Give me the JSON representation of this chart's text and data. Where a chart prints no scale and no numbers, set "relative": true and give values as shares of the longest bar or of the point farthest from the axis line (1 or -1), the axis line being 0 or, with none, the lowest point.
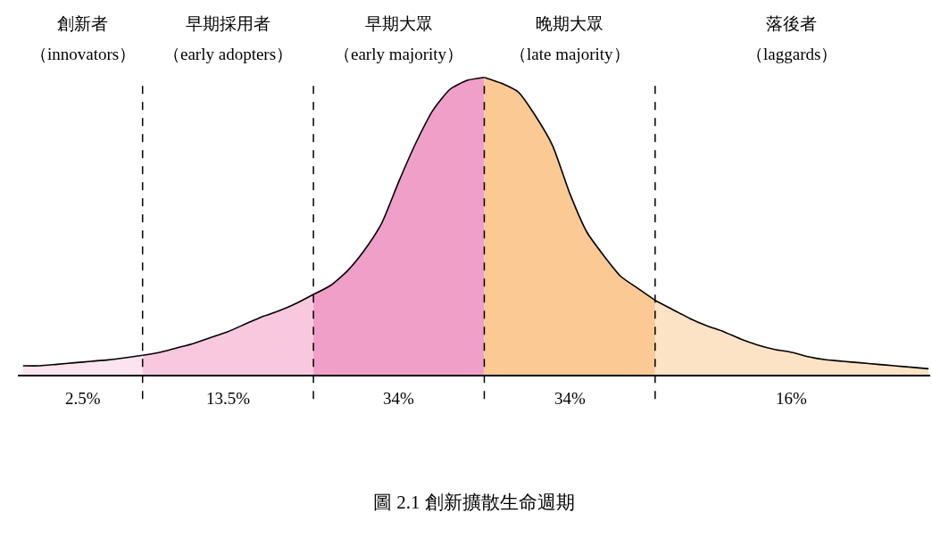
{
  "chart_data": {
    "type": "area",
    "relative": true,
    "grid": "x",
    "categories": [
      null,
      null,
      null,
      null,
      null,
      null,
      null,
      null,
      null,
      null,
      null,
      null,
      null,
      null,
      null,
      null,
      null,
      null,
      null,
      null,
      null,
      null,
      null,
      null,
      null,
      null,
      null,
      null,
      null,
      null,
      null,
      null,
      null,
      null,
      null,
      null,
      null,
      null,
      null,
      null,
      null,
      null,
      null,
      null,
      null,
      null,
      null,
      null,
      null,
      null,
      null,
      null,
      null,
      null
    ],
    "series": [
      {
        "color": "#fce4ef",
        "values": [
          0.03,
          0.03,
          0.035,
          0.04,
          0.045,
          0.05,
          0.057,
          0.065,
          null,
          null,
          null,
          null,
          null,
          null,
          null,
          null,
          null,
          null,
          null,
          null,
          null,
          null,
          null,
          null,
          null,
          null,
          null,
          null,
          null,
          null,
          null,
          null,
          null,
          null,
          null,
          null,
          null,
          null,
          null,
          null,
          null,
          null,
          null,
          null,
          null,
          null,
          null,
          null,
          null,
          null,
          null,
          null,
          null,
          null
        ]
      },
      {
        "color": "#f8c8df",
        "values": [
          null,
          null,
          null,
          null,
          null,
          null,
          null,
          0.065,
          0.075,
          0.09,
          0.105,
          0.125,
          0.145,
          0.17,
          0.195,
          0.215,
          0.24,
          0.27,
          null,
          null,
          null,
          null,
          null,
          null,
          null,
          null,
          null,
          null,
          null,
          null,
          null,
          null,
          null,
          null,
          null,
          null,
          null,
          null,
          null,
          null,
          null,
          null,
          null,
          null,
          null,
          null,
          null,
          null,
          null,
          null,
          null,
          null,
          null,
          null
        ]
      },
      {
        "color": "#ef9fc8",
        "values": [
          null,
          null,
          null,
          null,
          null,
          null,
          null,
          null,
          null,
          null,
          null,
          null,
          null,
          null,
          null,
          null,
          null,
          0.27,
          0.3,
          0.35,
          0.42,
          0.51,
          0.65,
          0.78,
          0.89,
          0.96,
          0.99,
          1.0,
          null,
          null,
          null,
          null,
          null,
          null,
          null,
          null,
          null,
          null,
          null,
          null,
          null,
          null,
          null,
          null,
          null,
          null,
          null,
          null,
          null,
          null,
          null,
          null,
          null,
          null
        ]
      },
      {
        "color": "#fbc993",
        "values": [
          null,
          null,
          null,
          null,
          null,
          null,
          null,
          null,
          null,
          null,
          null,
          null,
          null,
          null,
          null,
          null,
          null,
          null,
          null,
          null,
          null,
          null,
          null,
          null,
          null,
          null,
          null,
          1.0,
          0.98,
          0.95,
          0.87,
          0.77,
          0.61,
          0.48,
          0.4,
          0.33,
          0.29,
          0.25,
          null,
          null,
          null,
          null,
          null,
          null,
          null,
          null,
          null,
          null,
          null,
          null,
          null,
          null,
          null,
          null
        ]
      },
      {
        "color": "#fde3c6",
        "values": [
          null,
          null,
          null,
          null,
          null,
          null,
          null,
          null,
          null,
          null,
          null,
          null,
          null,
          null,
          null,
          null,
          null,
          null,
          null,
          null,
          null,
          null,
          null,
          null,
          null,
          null,
          null,
          null,
          null,
          null,
          null,
          null,
          null,
          null,
          null,
          null,
          null,
          0.25,
          0.22,
          0.19,
          0.165,
          0.145,
          0.12,
          0.1,
          0.085,
          0.075,
          0.06,
          0.05,
          0.045,
          0.04,
          0.035,
          0.03,
          0.025,
          0.02
        ]
      }
    ],
    "annotations": [
      "創新者",
      "早期採用者",
      "早期大眾",
      "晚期大眾",
      "落後者",
      "（innovators）",
      "（early adopters）",
      "（early majority）",
      "（late majority）",
      "（laggards）",
      "2.5%",
      "13.5%",
      "34%",
      "34%",
      "16%",
      "圖 2.1 創新擴散生命週期"
    ]
  }
}
